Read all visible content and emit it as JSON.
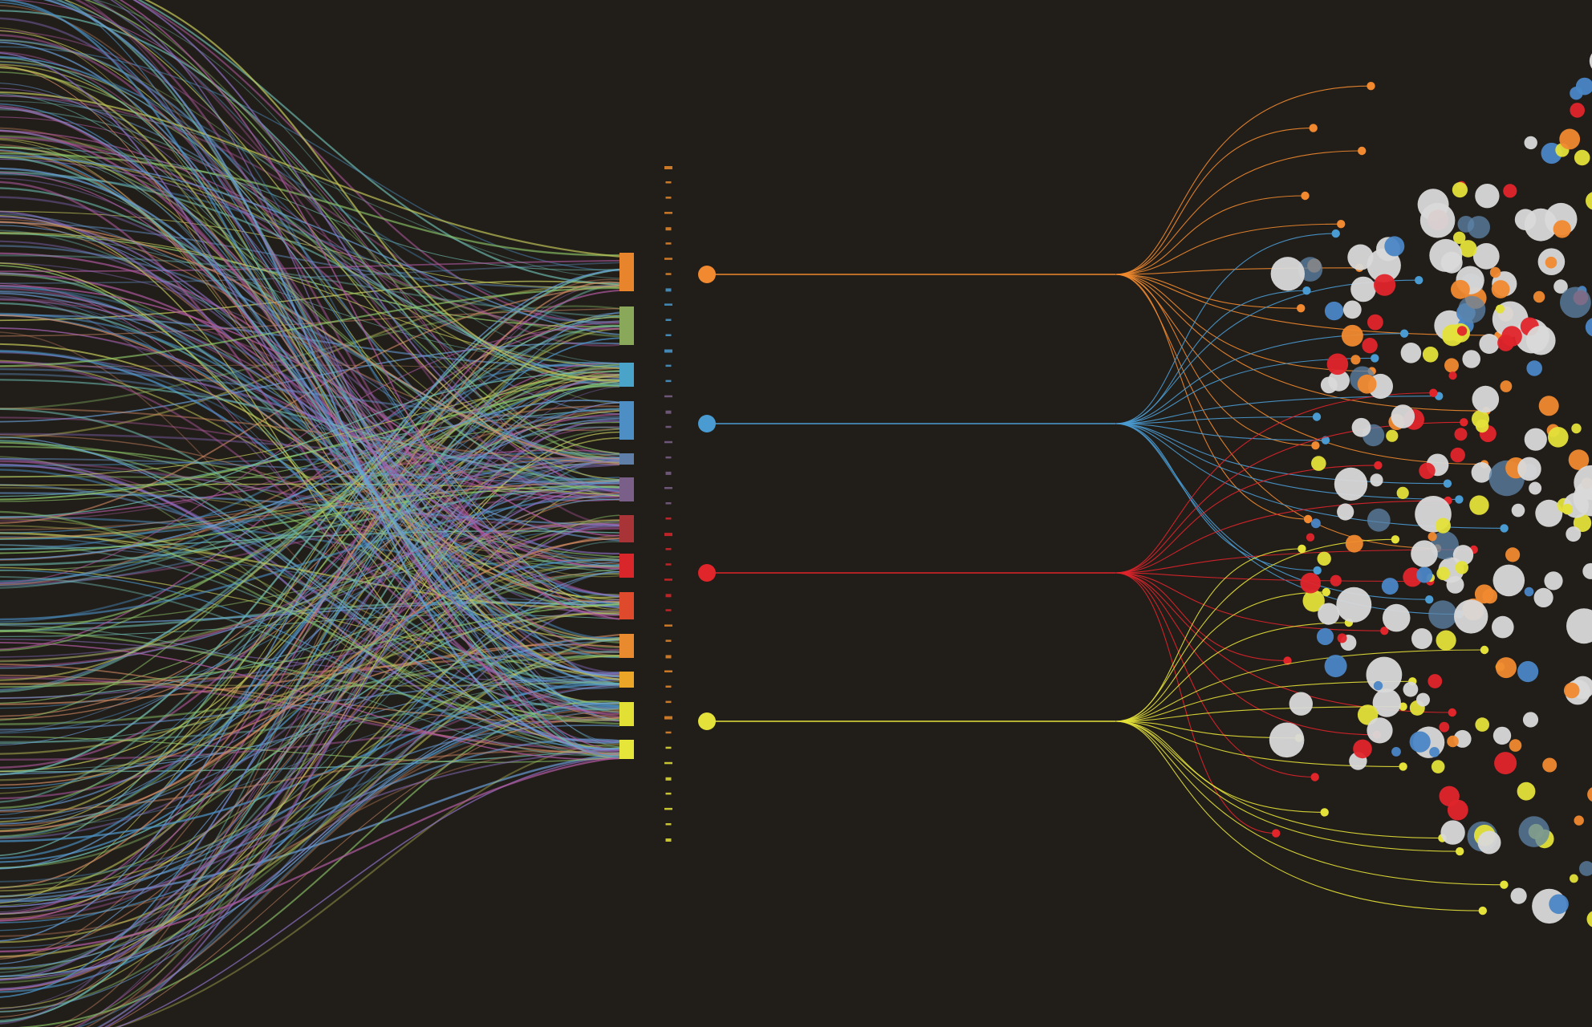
{
  "colors": {
    "background": "#211d19",
    "palette": [
      "#f0892f",
      "#4a9bd1",
      "#e0252b",
      "#e4e23a",
      "#d9d9d9"
    ]
  },
  "bundle": {
    "block_colors": [
      "#e8842c",
      "#8aa85a",
      "#4aa3c8",
      "#4d8ec4",
      "#5f7ea8",
      "#7a6088",
      "#a83438",
      "#d8262b",
      "#e04a2c",
      "#e88a2d",
      "#eba628",
      "#e2df35",
      "#e6e63a"
    ],
    "block_count": 13,
    "fiber_colors": [
      "#8b6fc2",
      "#b05aa0",
      "#4c93c6",
      "#6fbfb2",
      "#8fc96a",
      "#c3c85a",
      "#d08a63",
      "#6a9fd8"
    ]
  },
  "ruler": {
    "segments": 45,
    "colors": [
      "#e88a2d",
      "#4a9bd1",
      "#7a6088",
      "#d8262b",
      "#e88a2d",
      "#e4e23a"
    ]
  },
  "hubs": [
    {
      "name": "orange",
      "color": "#f0892f"
    },
    {
      "name": "blue",
      "color": "#4a9bd1"
    },
    {
      "name": "red",
      "color": "#e0252b"
    },
    {
      "name": "yellow",
      "color": "#e4e23a"
    }
  ],
  "fanout": {
    "branches_per_hub": [
      14,
      14,
      12,
      14
    ]
  },
  "bubbles": {
    "count": 230,
    "colors": [
      "#d9d9d9",
      "#d9d9d9",
      "#d9d9d9",
      "#4a86c5",
      "#5d84a8",
      "#f0892f",
      "#e0252b",
      "#e4e23a"
    ]
  }
}
